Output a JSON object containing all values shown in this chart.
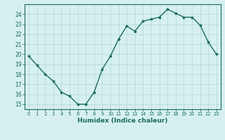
{
  "x": [
    0,
    1,
    2,
    3,
    4,
    5,
    6,
    7,
    8,
    9,
    10,
    11,
    12,
    13,
    14,
    15,
    16,
    17,
    18,
    19,
    20,
    21,
    22,
    23
  ],
  "y": [
    19.8,
    18.9,
    18.0,
    17.3,
    16.2,
    15.8,
    15.0,
    15.0,
    16.2,
    18.5,
    19.8,
    21.5,
    22.8,
    22.3,
    23.3,
    23.5,
    23.7,
    24.5,
    24.1,
    23.7,
    23.7,
    22.9,
    21.2,
    20.0
  ],
  "line_color": "#1a6b5a",
  "marker": "o",
  "marker_size": 2.2,
  "bg_color": "#d6f0f0",
  "grid_color": "#b8dada",
  "xlabel": "Humidex (Indice chaleur)",
  "ylim": [
    14.5,
    25.0
  ],
  "xlim": [
    -0.5,
    23.5
  ],
  "yticks": [
    15,
    16,
    17,
    18,
    19,
    20,
    21,
    22,
    23,
    24
  ],
  "xticks": [
    0,
    1,
    2,
    3,
    4,
    5,
    6,
    7,
    8,
    9,
    10,
    11,
    12,
    13,
    14,
    15,
    16,
    17,
    18,
    19,
    20,
    21,
    22,
    23
  ],
  "ytick_fontsize": 5.5,
  "xtick_fontsize": 4.8,
  "xlabel_fontsize": 6.5
}
